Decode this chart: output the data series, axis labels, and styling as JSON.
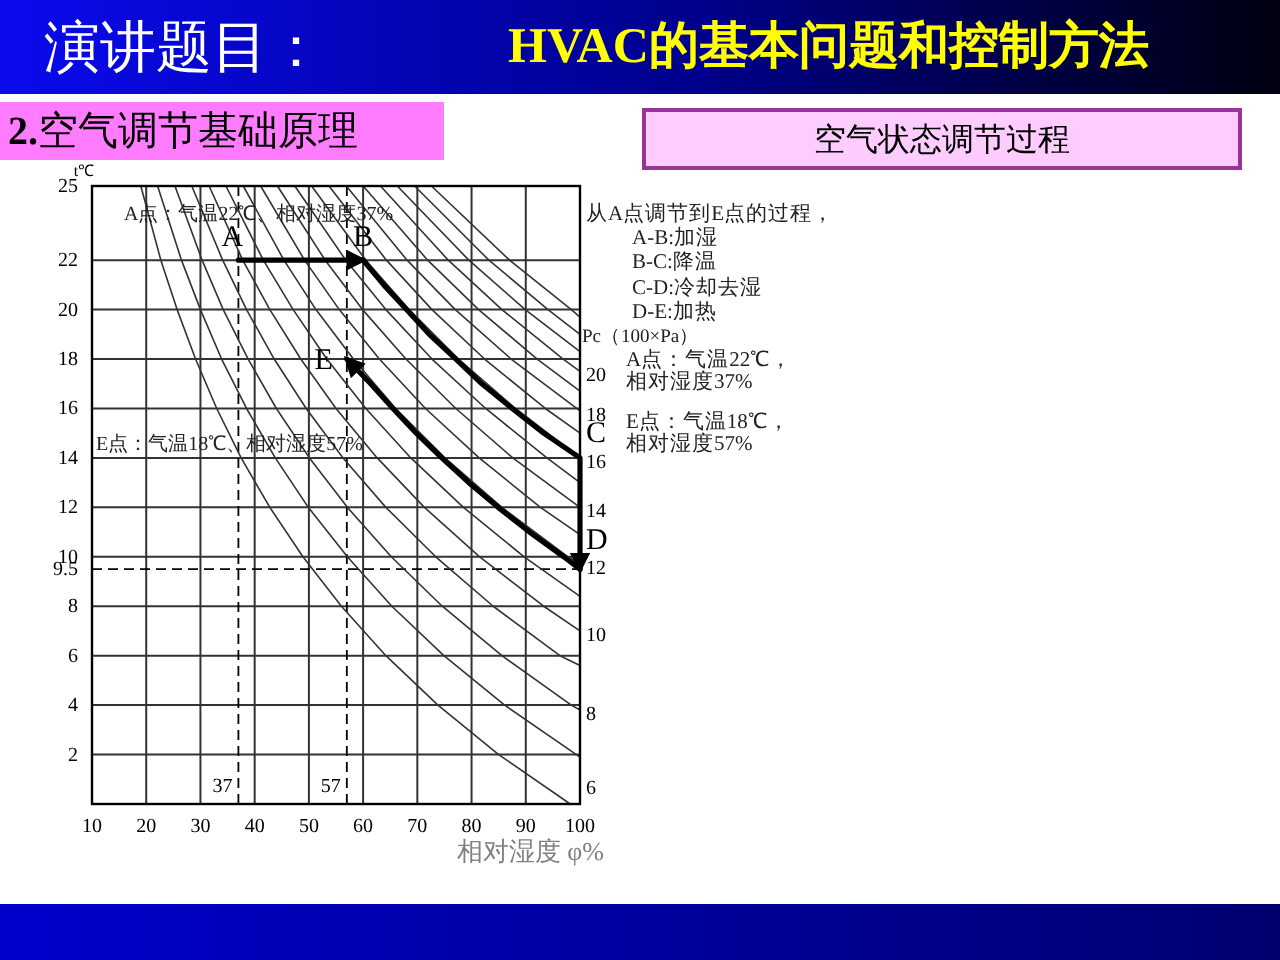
{
  "chart_data": {
    "type": "line",
    "title": "空气状态调节过程",
    "xlabel": "相对湿度 φ%",
    "ylabel": "t℃",
    "xlim": [
      10,
      100
    ],
    "ylim": [
      0,
      25
    ],
    "xticks": [
      10,
      20,
      30,
      40,
      50,
      60,
      70,
      80,
      90,
      100
    ],
    "yticks": [
      2,
      4,
      6,
      8,
      10,
      12,
      14,
      16,
      18,
      20,
      22,
      25
    ],
    "grid": true,
    "ref_lines": [
      {
        "axis": "x",
        "value": 37,
        "label": "37",
        "line_style": "dashed"
      },
      {
        "axis": "x",
        "value": 57,
        "label": "57",
        "line_style": "dashed"
      },
      {
        "axis": "y",
        "value": 9.5,
        "label": "9.5",
        "line_style": "dashed"
      }
    ],
    "series": [
      {
        "name": "6",
        "color": "#333333",
        "x": [
          19.0,
          22.7,
          25.7,
          29.1,
          33.0,
          37.5,
          42.8,
          48.9,
          56.0,
          64.2,
          73.8,
          85.0,
          98.2
        ],
        "values": [
          25,
          22,
          20,
          18,
          16,
          14,
          12,
          10,
          8,
          6,
          4,
          2,
          0
        ]
      },
      {
        "color": "#333333",
        "x": [
          22.1,
          26.5,
          30.0,
          33.9,
          38.5,
          43.8,
          49.9,
          57.1,
          65.3,
          74.9,
          86.1,
          100
        ],
        "values": [
          25,
          22,
          20,
          18,
          16,
          14,
          12,
          10,
          8,
          6,
          4,
          1.9
        ]
      },
      {
        "name": "8",
        "color": "#333333",
        "x": [
          25.3,
          30.3,
          34.2,
          38.8,
          44.0,
          50.1,
          57.1,
          65.2,
          74.6,
          85.6,
          98.4,
          100
        ],
        "values": [
          25,
          22,
          20,
          18,
          16,
          14,
          12,
          10,
          8,
          6,
          4,
          3.8
        ]
      },
      {
        "color": "#333333",
        "x": [
          28.4,
          34.1,
          38.5,
          43.6,
          49.5,
          56.3,
          64.2,
          73.4,
          84.0,
          96.3,
          100
        ],
        "values": [
          25,
          22,
          20,
          18,
          16,
          14,
          12,
          10,
          8,
          6,
          5.6
        ]
      },
      {
        "name": "10",
        "color": "#333333",
        "x": [
          31.6,
          37.8,
          42.8,
          48.5,
          55.0,
          62.6,
          71.3,
          81.5,
          93.3,
          100
        ],
        "values": [
          25,
          22,
          20,
          18,
          16,
          14,
          12,
          10,
          8,
          7.0
        ]
      },
      {
        "color": "#333333",
        "x": [
          34.7,
          41.6,
          47.1,
          53.3,
          60.5,
          68.8,
          78.5,
          89.7,
          100
        ],
        "values": [
          25,
          22,
          20,
          18,
          16,
          14,
          12,
          10,
          8.4
        ]
      },
      {
        "name": "12",
        "color": "#333333",
        "x": [
          37.9,
          45.4,
          51.3,
          58.2,
          66.0,
          75.1,
          85.6,
          97.8,
          100
        ],
        "values": [
          25,
          22,
          20,
          18,
          16,
          14,
          12,
          10,
          9.7
        ]
      },
      {
        "color": "#333333",
        "x": [
          41.1,
          49.2,
          55.6,
          63.0,
          71.5,
          81.4,
          92.7,
          100
        ],
        "values": [
          25,
          22,
          20,
          18,
          16,
          14,
          12,
          10.9
        ]
      },
      {
        "name": "14",
        "color": "#333333",
        "x": [
          44.2,
          53.0,
          59.9,
          67.9,
          77.1,
          87.6,
          100
        ],
        "values": [
          25,
          22,
          20,
          18,
          16,
          14,
          12
        ]
      },
      {
        "color": "#333333",
        "x": [
          47.4,
          56.8,
          64.2,
          72.7,
          82.6,
          93.9,
          100
        ],
        "values": [
          25,
          22,
          20,
          18,
          16,
          14,
          13
        ]
      },
      {
        "name": "16",
        "color": "#333333",
        "x": [
          50.5,
          60.5,
          68.5,
          77.6,
          88.1,
          100
        ],
        "values": [
          25,
          22,
          20,
          18,
          16,
          14
        ]
      },
      {
        "color": "#333333",
        "x": [
          53.7,
          64.3,
          72.7,
          82.4,
          93.6,
          100
        ],
        "values": [
          25,
          22,
          20,
          18,
          16,
          15
        ]
      },
      {
        "name": "18",
        "color": "#333333",
        "x": [
          56.9,
          68.1,
          77.0,
          87.3,
          100
        ],
        "values": [
          25,
          22,
          20,
          18,
          15.9
        ]
      },
      {
        "color": "#333333",
        "x": [
          60.0,
          71.9,
          81.3,
          92.1,
          100
        ],
        "values": [
          25,
          22,
          20,
          18,
          16.7
        ]
      },
      {
        "name": "20",
        "color": "#333333",
        "x": [
          63.2,
          75.7,
          85.6,
          96.9,
          100
        ],
        "values": [
          25,
          22,
          20,
          18,
          17.5
        ]
      },
      {
        "color": "#333333",
        "x": [
          66.3,
          79.5,
          89.9,
          100
        ],
        "values": [
          25,
          22,
          20,
          18.3
        ]
      },
      {
        "color": "#333333",
        "x": [
          69.5,
          83.2,
          94.1,
          100
        ],
        "values": [
          25,
          22,
          20,
          19.0
        ]
      },
      {
        "color": "#333333",
        "x": [
          72.6,
          87.0,
          98.4,
          100
        ],
        "values": [
          25,
          22,
          20,
          19.7
        ]
      },
      {
        "color": "#000000",
        "x": [
          37,
          60
        ],
        "values": [
          22,
          22
        ]
      },
      {
        "color": "#000000",
        "x": [
          60,
          63.8,
          68.0,
          72.2,
          77.1,
          81.9,
          87.5,
          93.3,
          100,
          100
        ],
        "values": [
          22,
          21,
          20,
          19,
          18,
          17,
          16,
          15,
          14,
          9.5
        ]
      },
      {
        "color": "#000000",
        "x": [
          100,
          97.0,
          90.7,
          84.9,
          79.5,
          74.5,
          69.8,
          65.5,
          61.4,
          57
        ],
        "values": [
          9.5,
          10,
          11,
          12,
          13,
          14,
          15,
          16,
          17,
          18
        ]
      }
    ],
    "annotations": [
      "演讲题目：",
      "HVAC的基本问题和控制方法",
      "**2.**空气调节基础原理",
      "从A点调节到E点的过程，",
      "A-B:加湿",
      "B-C:降温",
      "C-D:冷却去湿",
      "D-E:加热",
      "Pc（100×Pa）",
      "A点：气温22℃，",
      "相对湿度37%",
      "E点：气温18℃，",
      "相对湿度57%",
      "A点：气温22℃、相对湿度37%",
      "E点：气温18℃、相对湿度57%",
      {
        "text": "A",
        "x": 37,
        "y": 22
      },
      {
        "text": "B",
        "x": 60,
        "y": 22
      },
      {
        "text": "C",
        "x": 100,
        "y": 14
      },
      {
        "text": "D",
        "x": 100,
        "y": 9.5
      },
      {
        "text": "E",
        "x": 57,
        "y": 18
      }
    ]
  }
}
